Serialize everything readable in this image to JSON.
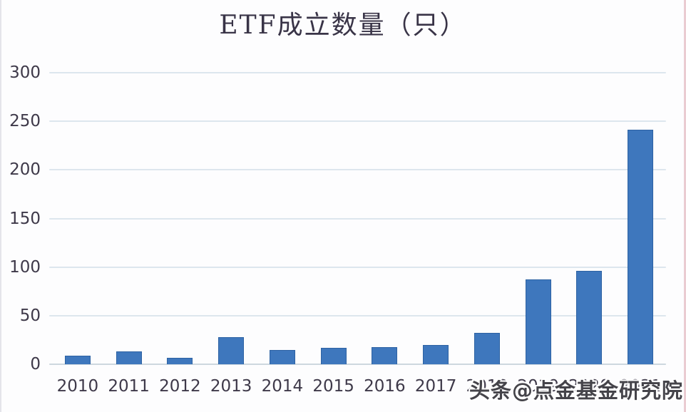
{
  "chart_data": {
    "type": "bar",
    "title": "ETF成立数量（只）",
    "categories": [
      "2010",
      "2011",
      "2012",
      "2013",
      "2014",
      "2015",
      "2016",
      "2017",
      "2018",
      "2019",
      "2020",
      "2021"
    ],
    "values": [
      9,
      13,
      7,
      28,
      15,
      17,
      18,
      20,
      32,
      87,
      96,
      241
    ],
    "xlabel": "",
    "ylabel": "",
    "ylim": [
      0,
      300
    ],
    "yticks": [
      0,
      50,
      100,
      150,
      200,
      250,
      300
    ],
    "grid": true,
    "legend": false
  },
  "watermark": {
    "text": "头条@点金基金研究院"
  },
  "colors": {
    "background": "#fdfdfe",
    "bar": "#3e77bd",
    "bar_edge": "#2d62a3",
    "grid": "#dde6ee",
    "baseline": "#cdd7df",
    "axis_text": "#3e3949",
    "title_text": "#393447",
    "watermark_text": "#45444a"
  }
}
